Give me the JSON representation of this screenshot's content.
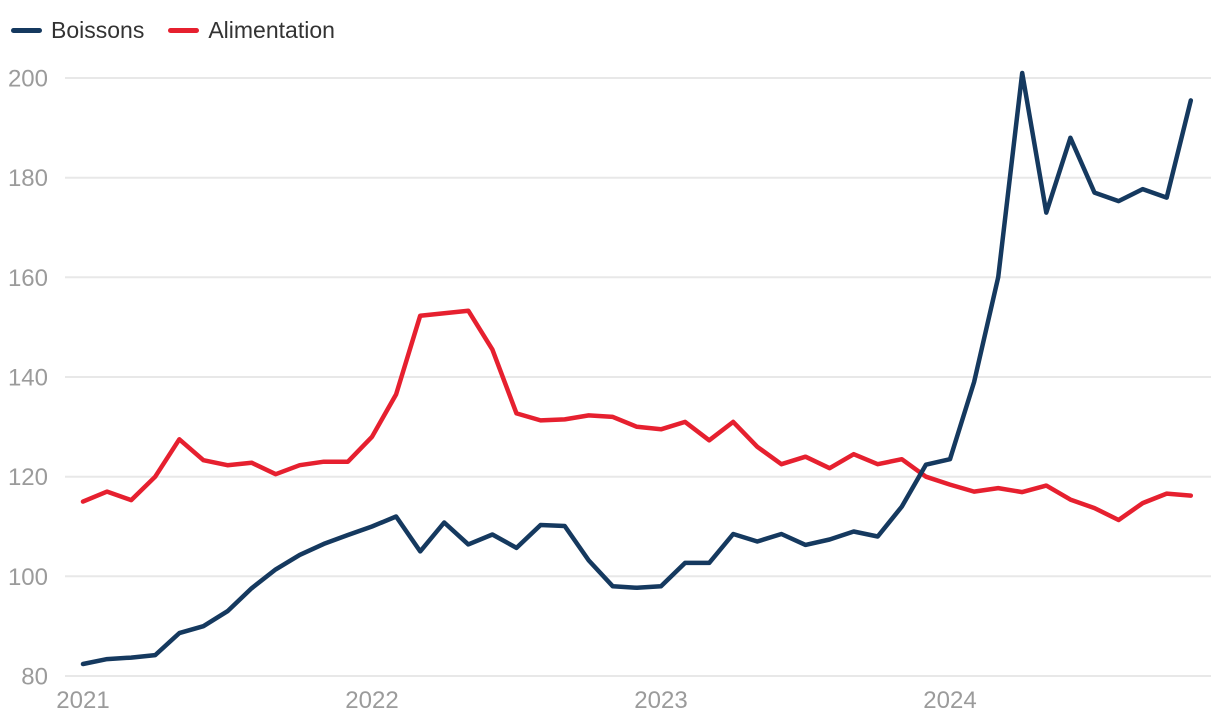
{
  "legend": {
    "items": [
      {
        "label": "Boissons"
      },
      {
        "label": "Alimentation"
      }
    ]
  },
  "colors": {
    "boissons_line": "#15395f",
    "alimentation_line": "#e6202f",
    "gridline": "#e8e8e8",
    "axis_label": "#9b9b9b",
    "legend_text": "#333333",
    "background": "#ffffff"
  },
  "chart_data": {
    "type": "line",
    "title": "",
    "xlabel": "",
    "ylabel": "",
    "grid": "horizontal",
    "legend_position": "top-left",
    "ylim": [
      80,
      204
    ],
    "y_ticks": [
      80,
      100,
      120,
      140,
      160,
      180,
      200
    ],
    "x_tick_labels": [
      "2021",
      "2022",
      "2023",
      "2024"
    ],
    "x_tick_month_index": [
      0,
      12,
      24,
      36
    ],
    "x": [
      "2021-01",
      "2021-02",
      "2021-03",
      "2021-04",
      "2021-05",
      "2021-06",
      "2021-07",
      "2021-08",
      "2021-09",
      "2021-10",
      "2021-11",
      "2021-12",
      "2022-01",
      "2022-02",
      "2022-03",
      "2022-04",
      "2022-05",
      "2022-06",
      "2022-07",
      "2022-08",
      "2022-09",
      "2022-10",
      "2022-11",
      "2022-12",
      "2023-01",
      "2023-02",
      "2023-03",
      "2023-04",
      "2023-05",
      "2023-06",
      "2023-07",
      "2023-08",
      "2023-09",
      "2023-10",
      "2023-11",
      "2023-12",
      "2024-01",
      "2024-02",
      "2024-03",
      "2024-04",
      "2024-05",
      "2024-06",
      "2024-07",
      "2024-08",
      "2024-09",
      "2024-10",
      "2024-11"
    ],
    "series": [
      {
        "name": "Boissons",
        "color": "#15395f",
        "values": [
          82.4,
          83.4,
          83.7,
          84.2,
          88.6,
          90,
          93,
          97.6,
          101.4,
          104.3,
          106.5,
          108.3,
          110,
          112,
          105,
          110.8,
          106.4,
          108.4,
          105.7,
          110.3,
          110.1,
          103.2,
          98,
          97.7,
          98,
          102.7,
          102.7,
          108.5,
          107,
          108.5,
          106.3,
          107.4,
          109,
          108,
          114,
          122.4,
          123.5,
          139,
          160,
          201,
          173,
          188,
          177,
          175.3,
          177.7,
          176,
          195.5
        ]
      },
      {
        "name": "Alimentation",
        "color": "#e6202f",
        "values": [
          115,
          117,
          115.3,
          120,
          127.5,
          123.3,
          122.3,
          122.8,
          120.5,
          122.3,
          123,
          123,
          128,
          136.5,
          152.3,
          152.8,
          153.3,
          145.5,
          132.7,
          131.3,
          131.5,
          132.3,
          132,
          130,
          129.5,
          131,
          127.3,
          131,
          126,
          122.5,
          124,
          121.7,
          124.5,
          122.5,
          123.5,
          120,
          118.4,
          117,
          117.7,
          116.9,
          118.2,
          115.4,
          113.7,
          111.3,
          114.7,
          116.6,
          116.2
        ]
      }
    ]
  }
}
